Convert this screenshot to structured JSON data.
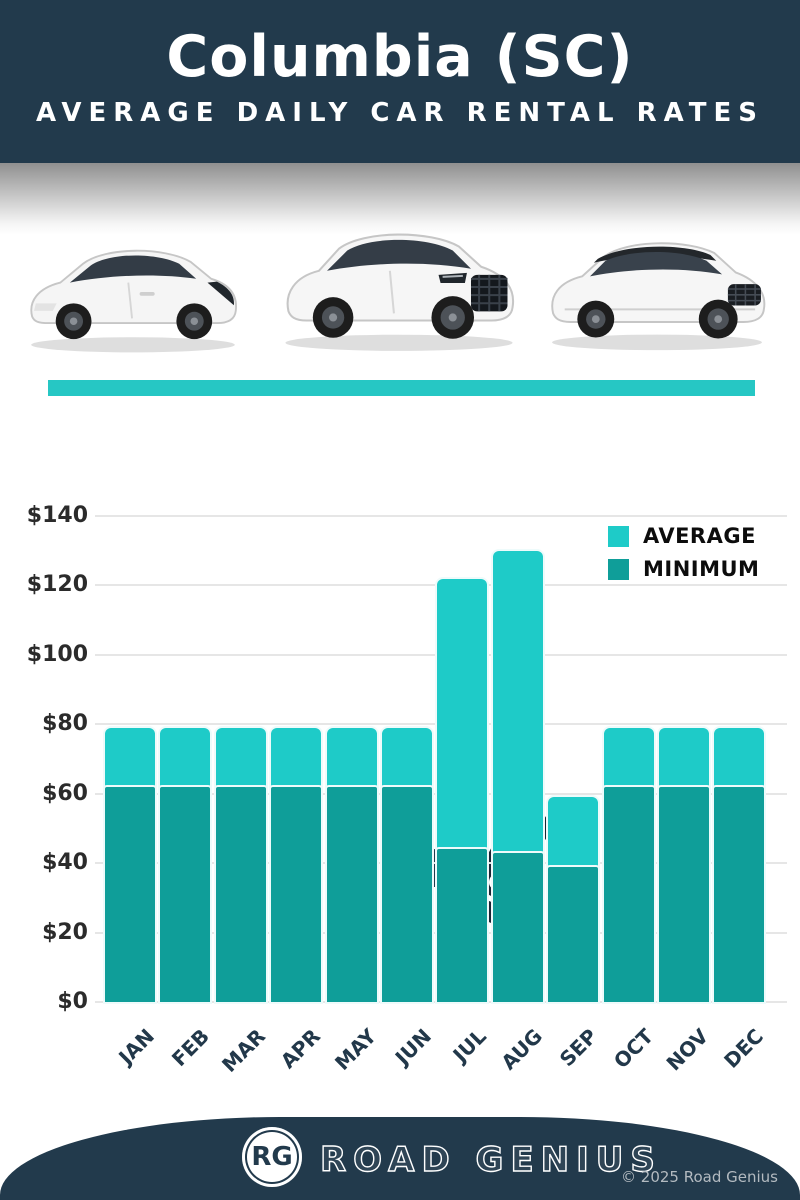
{
  "header": {
    "title": "Columbia (SC)",
    "subtitle": "AVERAGE DAILY CAR RENTAL RATES"
  },
  "currency": {
    "label": "USD",
    "tag_symbol": "$"
  },
  "colors": {
    "navy": "#223a4c",
    "tag_navy": "#1b2534",
    "divider_teal": "#26c7c4",
    "average_teal": "#1ecbc8",
    "minimum_teal": "#0f9e99",
    "gridline": "#e6e6e6"
  },
  "chart_data": {
    "type": "bar",
    "title": "Columbia (SC) average daily car rental rates, USD",
    "categories": [
      "JAN",
      "FEB",
      "MAR",
      "APR",
      "MAY",
      "JUN",
      "JUL",
      "AUG",
      "SEP",
      "OCT",
      "NOV",
      "DEC"
    ],
    "series": [
      {
        "name": "AVERAGE",
        "color": "#1ecbc8",
        "values": [
          79,
          79,
          79,
          79,
          79,
          79,
          122,
          130,
          59,
          79,
          79,
          79
        ]
      },
      {
        "name": "MINIMUM",
        "color": "#0f9e99",
        "values": [
          62,
          62,
          62,
          62,
          62,
          62,
          44,
          43,
          39,
          62,
          62,
          62
        ]
      }
    ],
    "xlabel": "",
    "ylabel": "USD",
    "ylim": [
      0,
      140
    ],
    "yticks": [
      0,
      20,
      40,
      60,
      80,
      100,
      120,
      140
    ],
    "ytick_labels": [
      "$0",
      "$20",
      "$40",
      "$60",
      "$80",
      "$100",
      "$120",
      "$140"
    ],
    "grid": true,
    "legend_position": "top-right",
    "bar_style": "overlapped"
  },
  "footer": {
    "logo_initials": "RG",
    "brand": "ROAD GENIUS",
    "copyright": "© 2025 Road Genius"
  }
}
